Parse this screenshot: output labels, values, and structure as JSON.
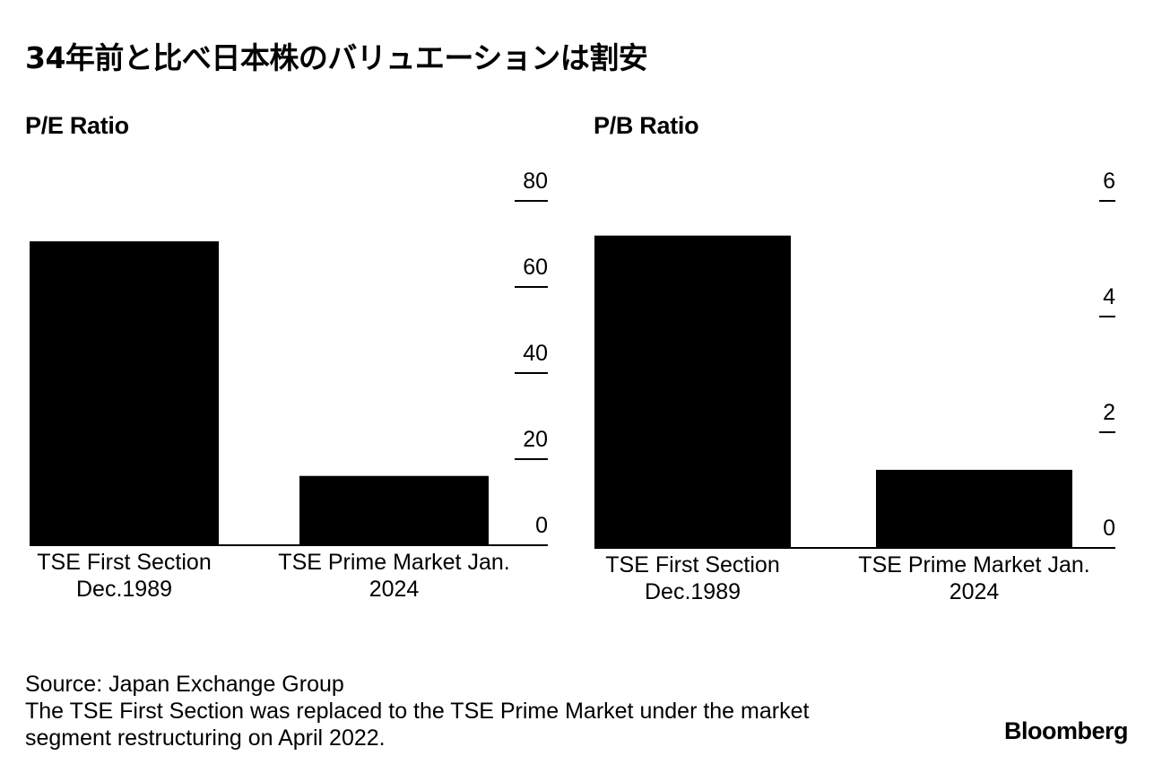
{
  "title": "34年前と比べ日本株のバリュエーションは割安",
  "chart_data": [
    {
      "type": "bar",
      "title": "P/E Ratio",
      "categories": [
        "TSE First Section Dec.1989",
        "TSE Prime Market Jan. 2024"
      ],
      "category_lines": [
        [
          "TSE First Section",
          "Dec.1989"
        ],
        [
          "TSE Prime Market Jan.",
          "2024"
        ]
      ],
      "values": [
        70.6,
        16.1
      ],
      "ylim": [
        0,
        80
      ],
      "yticks": [
        0,
        20,
        40,
        60,
        80
      ],
      "y_axis_position": "right",
      "grid": false
    },
    {
      "type": "bar",
      "title": "P/B Ratio",
      "categories": [
        "TSE First Section Dec.1989",
        "TSE Prime Market Jan. 2024"
      ],
      "category_lines": [
        [
          "TSE First Section",
          "Dec.1989"
        ],
        [
          "TSE Prime Market Jan.",
          "2024"
        ]
      ],
      "values": [
        5.4,
        1.35
      ],
      "ylim": [
        0,
        6
      ],
      "yticks": [
        0,
        2,
        4,
        6
      ],
      "y_axis_position": "right",
      "grid": false
    }
  ],
  "footer": {
    "source": "Source: Japan Exchange Group",
    "note_line1": "The TSE First Section was replaced to the TSE Prime Market under the market",
    "note_line2": "segment restructuring on April 2022."
  },
  "brand": "Bloomberg",
  "colors": {
    "bar": "#000000",
    "text": "#000000",
    "background": "#ffffff"
  }
}
